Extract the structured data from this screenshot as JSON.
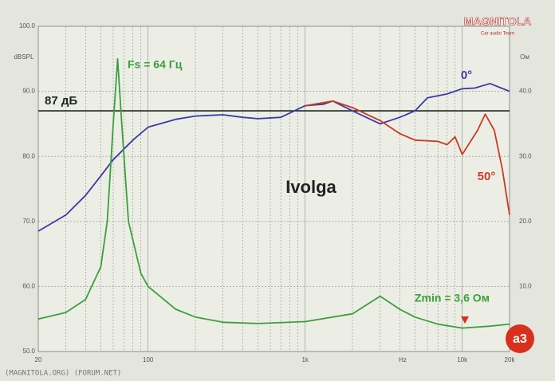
{
  "chart_data": {
    "type": "line",
    "title": "Ivolga",
    "x_scale": "log",
    "x_unit": "Hz",
    "y_unit": "dBSPL",
    "y2_unit": "Ом",
    "xlim": [
      20,
      20000
    ],
    "xticks": [
      20,
      100,
      {
        "value": 1000,
        "label": "1k"
      },
      {
        "value": 10000,
        "label": "10k"
      },
      {
        "value": 20000,
        "label": "20k"
      }
    ],
    "ylim": [
      50,
      100
    ],
    "yticks": [
      {
        "value": 50,
        "label": "50.0"
      },
      {
        "value": 60,
        "label": "60.0"
      },
      {
        "value": 70,
        "label": "70.0"
      },
      {
        "value": 80,
        "label": "80.0"
      },
      {
        "value": 90,
        "label": "90.0"
      },
      {
        "value": 100,
        "label": "100.0"
      }
    ],
    "y2lim": [
      0,
      50
    ],
    "y2ticks": [
      {
        "value": 10,
        "label": "10.0"
      },
      {
        "value": 20,
        "label": "20.0"
      },
      {
        "value": 30,
        "label": "30.0"
      },
      {
        "value": 40,
        "label": "40.0"
      }
    ],
    "grid": true,
    "reference_line": {
      "value": 87,
      "label": "87 дБ",
      "color": "#1c2a1c"
    },
    "series": [
      {
        "name": "0°",
        "color": "#3a3aa8",
        "x": [
          20,
          30,
          40,
          50,
          60,
          80,
          100,
          150,
          200,
          300,
          400,
          500,
          700,
          1000,
          1300,
          1500,
          2000,
          3000,
          4000,
          5000,
          6000,
          8000,
          10000,
          12000,
          15000,
          20000
        ],
        "values": [
          68.5,
          71,
          74,
          77,
          79.5,
          82.5,
          84.5,
          85.7,
          86.2,
          86.4,
          86,
          85.8,
          86,
          87.8,
          88,
          88.5,
          87,
          85,
          86,
          87,
          89,
          89.6,
          90.4,
          90.5,
          91.2,
          90
        ]
      },
      {
        "name": "50°",
        "color": "#cc3a1e",
        "x": [
          1000,
          1500,
          2000,
          3000,
          4000,
          5000,
          7000,
          8000,
          9000,
          10000,
          12500,
          14000,
          16000,
          18000,
          20000
        ],
        "values": [
          87.8,
          88.5,
          87.5,
          85.5,
          83.5,
          82.5,
          82.3,
          81.8,
          83,
          80.3,
          84,
          86.5,
          84,
          78,
          71
        ]
      },
      {
        "color": "#3aa03a",
        "axis": "y2",
        "x": [
          20,
          30,
          40,
          50,
          55,
          60,
          64,
          68,
          75,
          90,
          100,
          150,
          200,
          300,
          500,
          1000,
          2000,
          3000,
          4000,
          5000,
          7000,
          10000,
          15000,
          20000
        ],
        "values": [
          5,
          6,
          8,
          13,
          20,
          35,
          45,
          35,
          20,
          12,
          10,
          6.5,
          5.3,
          4.5,
          4.3,
          4.6,
          5.8,
          8.5,
          6.5,
          5.3,
          4.2,
          3.6,
          3.9,
          4.2
        ]
      }
    ],
    "annotations": [
      {
        "text": "Fs = 64 Гц",
        "color": "#3aa03a"
      },
      {
        "text": "Zmin = 3,6 Ом",
        "color": "#3aa03a"
      }
    ],
    "logo": {
      "title": "MAGNITOLA",
      "subtitle": "Car audio Team"
    },
    "badge": "a3",
    "footer": "(MAGNITOLA.ORG) (FORUM.NET)"
  }
}
